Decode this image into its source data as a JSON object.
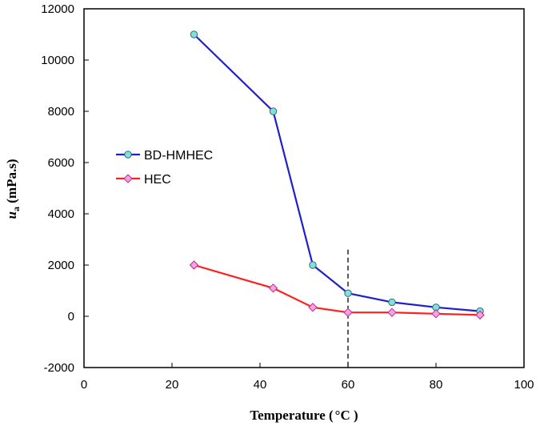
{
  "chart_data": {
    "type": "line",
    "xlabel": "Temperature (",
    "xlabel_unit": "°C )",
    "ylabel_main": "u",
    "ylabel_sub": "a",
    "ylabel_unit": " (mPa.s)",
    "xlim": [
      0,
      100
    ],
    "ylim": [
      -2000,
      12000
    ],
    "xticks": [
      0,
      20,
      40,
      60,
      80,
      100
    ],
    "yticks": [
      -2000,
      0,
      2000,
      4000,
      6000,
      8000,
      10000,
      12000
    ],
    "grid": false,
    "legend_position": "middle-left",
    "reference_line": {
      "x": 60,
      "style": "dashed"
    },
    "series": [
      {
        "name": "BD-HMHEC",
        "color": "#1f1fcc",
        "marker": "circle",
        "marker_fill": "#7fe0e0",
        "points": [
          [
            25,
            11000
          ],
          [
            43,
            8000
          ],
          [
            52,
            2000
          ],
          [
            60,
            900
          ],
          [
            70,
            550
          ],
          [
            80,
            350
          ],
          [
            90,
            200
          ]
        ]
      },
      {
        "name": "HEC",
        "color": "#ff1f1f",
        "marker": "diamond",
        "marker_fill": "#ff9fdf",
        "points": [
          [
            25,
            2000
          ],
          [
            43,
            1100
          ],
          [
            52,
            350
          ],
          [
            60,
            150
          ],
          [
            70,
            150
          ],
          [
            80,
            100
          ],
          [
            90,
            50
          ]
        ]
      }
    ]
  }
}
